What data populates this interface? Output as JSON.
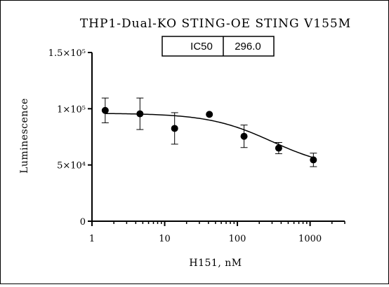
{
  "chart_data": {
    "type": "scatter",
    "title": "THP1-Dual-KO STING-OE STING V155M",
    "xlabel": "H151, nM",
    "ylabel": "Luminescence",
    "x_scale": "log",
    "xlim": [
      1,
      3000
    ],
    "ylim": [
      0,
      150000
    ],
    "x_ticks": [
      1,
      10,
      100,
      1000
    ],
    "x_tick_labels": [
      "1",
      "10",
      "100",
      "1000"
    ],
    "y_ticks": [
      0,
      50000,
      100000,
      150000
    ],
    "y_tick_labels": [
      "0",
      "5×10⁴",
      "1×10⁵",
      "1.5×10⁵"
    ],
    "grid": false,
    "points": [
      {
        "x": 1.52,
        "y": 98500,
        "err": 11000
      },
      {
        "x": 4.57,
        "y": 95500,
        "err": 14000
      },
      {
        "x": 13.7,
        "y": 82500,
        "err": 14000
      },
      {
        "x": 41.2,
        "y": 95000,
        "err": 0
      },
      {
        "x": 123.5,
        "y": 75500,
        "err": 10000
      },
      {
        "x": 370,
        "y": 65000,
        "err": 5000
      },
      {
        "x": 1111,
        "y": 54500,
        "err": 6000
      }
    ],
    "fit": {
      "top": 96000,
      "bottom": 46000,
      "ic50": 296.0,
      "hill": 1.0
    },
    "annotation": {
      "label": "IC50",
      "value": "296.0"
    }
  }
}
